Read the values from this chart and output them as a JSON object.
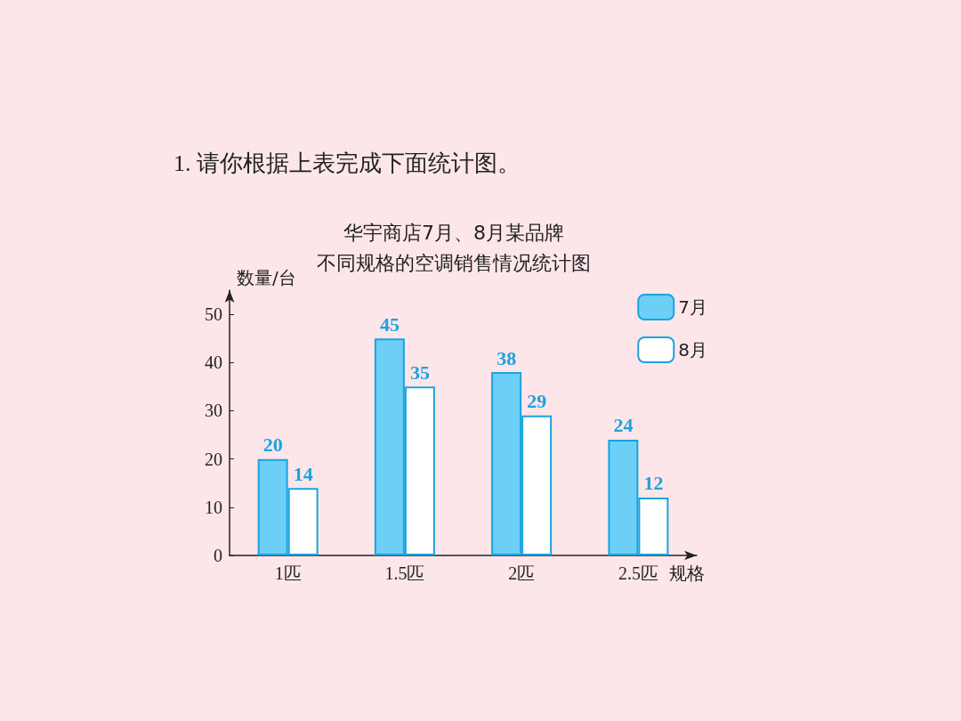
{
  "chart_data": {
    "type": "bar",
    "title": "华宇商店7月、8月某品牌",
    "subtitle": "不同规格的空调销售情况统计图",
    "annotations": [
      "1. 请你根据上表完成下面统计图。"
    ],
    "xlabel": "规格",
    "ylabel": "数量/台",
    "categories": [
      "1匹",
      "1.5匹",
      "2匹",
      "2.5匹"
    ],
    "series": [
      {
        "name": "7月",
        "color": "#6dcff6",
        "values": [
          20,
          45,
          38,
          24
        ]
      },
      {
        "name": "8月",
        "color": "#ffffff",
        "values": [
          14,
          35,
          29,
          12
        ]
      }
    ],
    "ylim": [
      0,
      55
    ],
    "yticks": [
      0,
      10,
      20,
      30,
      40,
      50
    ],
    "data_labels": true,
    "grid": false,
    "legend": "top right"
  }
}
